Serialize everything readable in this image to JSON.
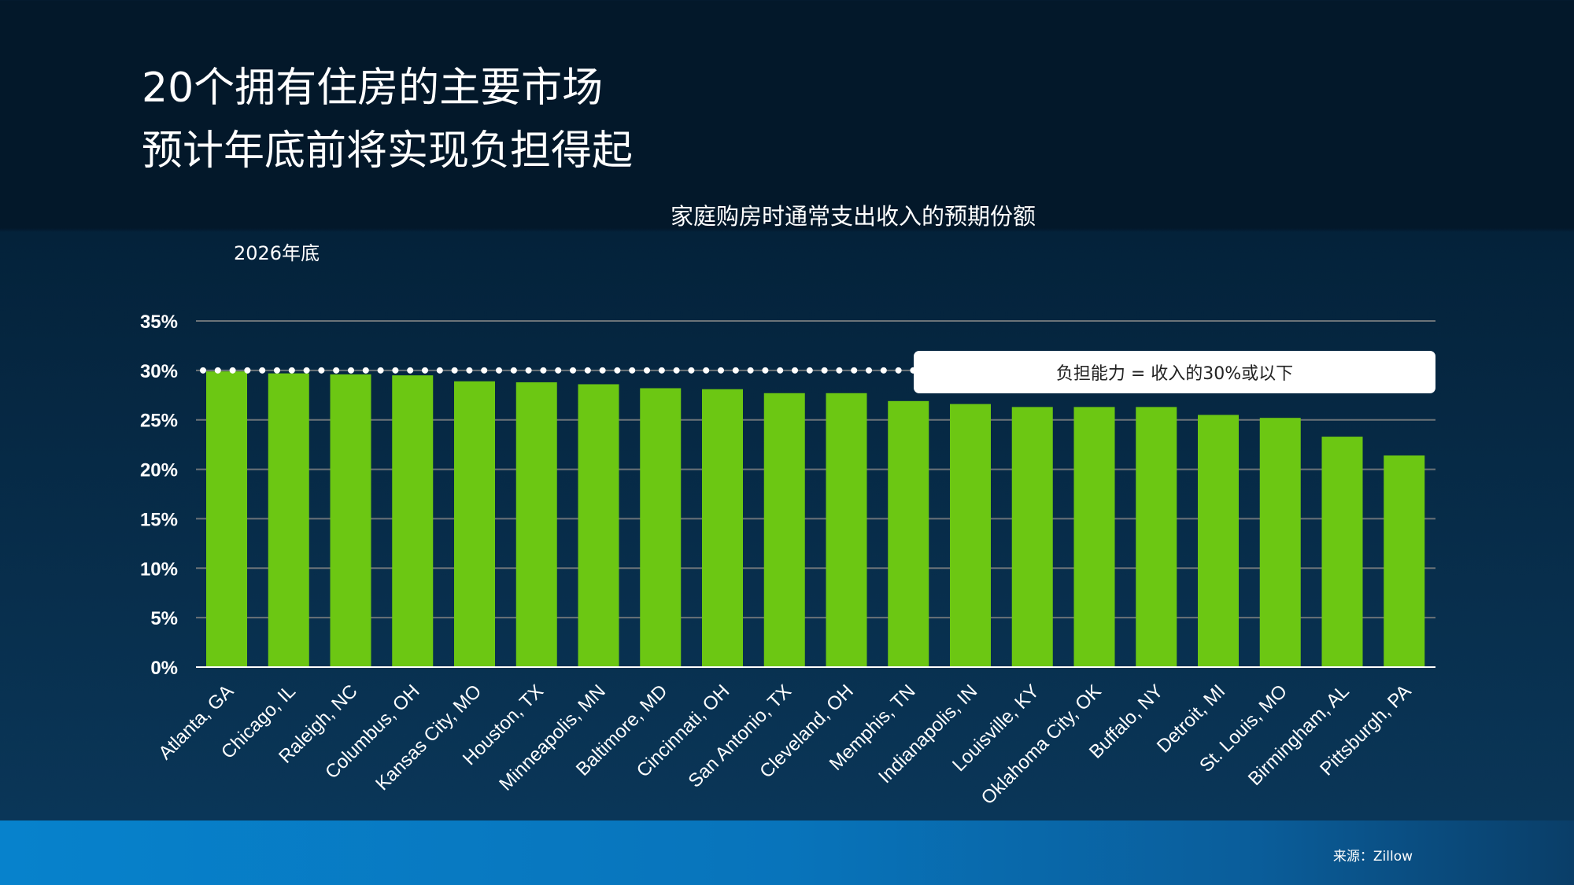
{
  "title_lines": [
    "20个拥有住房的主要市场",
    "预计年底前将实现负担得起"
  ],
  "source": "来源：Zillow",
  "colors": {
    "bar": "#6cc713",
    "grid": "#6b7378",
    "threshold": "#ffffff"
  },
  "chart_data": {
    "type": "bar",
    "title": "家庭购房时通常支出收入的预期份额",
    "subtitle": "2026年底",
    "categories": [
      "Atlanta, GA",
      "Chicago, IL",
      "Raleigh, NC",
      "Columbus, OH",
      "Kansas City, MO",
      "Houston, TX",
      "Minneapolis, MN",
      "Baltimore, MD",
      "Cincinnati, OH",
      "San Antonio, TX",
      "Cleveland, OH",
      "Memphis, TN",
      "Indianapolis, IN",
      "Louisville, KY",
      "Oklahoma City, OK",
      "Buffalo, NY",
      "Detroit, MI",
      "St. Louis, MO",
      "Birmingham, AL",
      "Pittsburgh, PA"
    ],
    "values": [
      29.9,
      29.7,
      29.6,
      29.5,
      28.9,
      28.8,
      28.6,
      28.2,
      28.1,
      27.7,
      27.7,
      26.9,
      26.6,
      26.3,
      26.3,
      26.3,
      25.5,
      25.2,
      23.3,
      21.4
    ],
    "ylim": [
      0,
      35
    ],
    "yticks": [
      0,
      5,
      10,
      15,
      20,
      25,
      30,
      35
    ],
    "ytick_labels": [
      "0%",
      "5%",
      "10%",
      "15%",
      "20%",
      "25%",
      "30%",
      "35%"
    ],
    "grid": true,
    "threshold": {
      "value": 30,
      "label": "负担能力 = 收入的30%或以下"
    }
  }
}
